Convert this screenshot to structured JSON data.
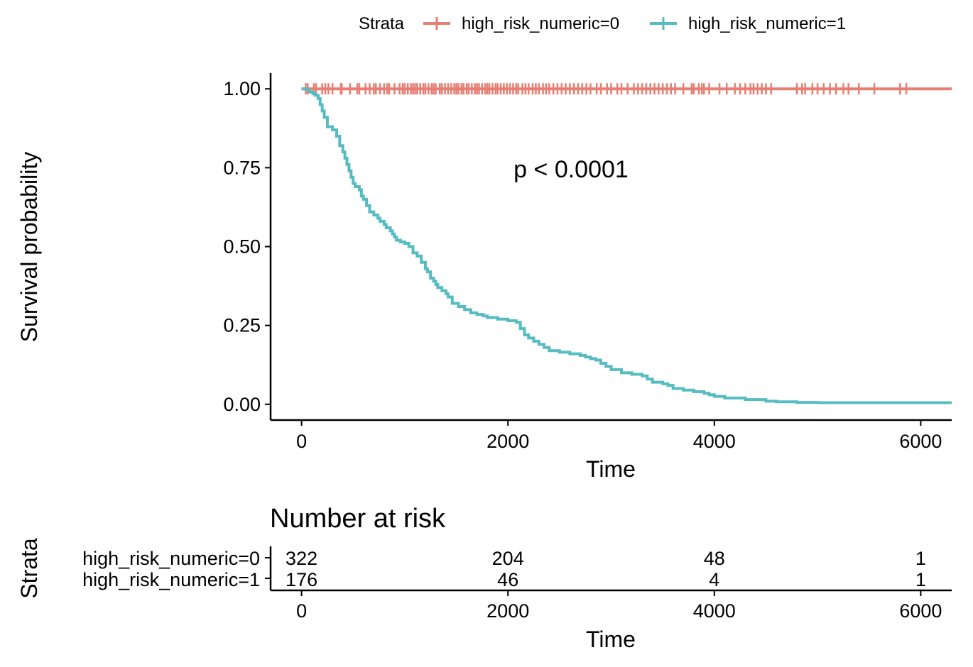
{
  "chart_data": {
    "type": "line",
    "subtype": "kaplan-meier",
    "xlabel": "Time",
    "ylabel": "Survival probability",
    "xlim": [
      -300,
      6300
    ],
    "ylim": [
      -0.05,
      1.05
    ],
    "x_ticks": [
      0,
      2000,
      4000,
      6000
    ],
    "y_ticks": [
      0.0,
      0.25,
      0.5,
      0.75,
      1.0
    ],
    "y_tick_labels": [
      "0.00",
      "0.25",
      "0.50",
      "0.75",
      "1.00"
    ],
    "grid": false,
    "legend": {
      "title": "Strata",
      "position": "top"
    },
    "annotation": "p < 0.0001",
    "colors": {
      "stratum0": "#E87D72",
      "stratum1": "#56BCC2"
    },
    "series": [
      {
        "name": "high_risk_numeric=0",
        "color": "#E87D72",
        "x": [
          0,
          6300
        ],
        "y": [
          1.0,
          1.0
        ],
        "censor_times": [
          40,
          60,
          120,
          140,
          200,
          230,
          260,
          300,
          380,
          390,
          470,
          540,
          560,
          620,
          660,
          700,
          720,
          760,
          800,
          830,
          850,
          900,
          950,
          980,
          1000,
          1030,
          1060,
          1080,
          1100,
          1120,
          1150,
          1180,
          1200,
          1230,
          1260,
          1280,
          1300,
          1340,
          1360,
          1390,
          1420,
          1450,
          1480,
          1500,
          1520,
          1550,
          1570,
          1600,
          1620,
          1650,
          1680,
          1700,
          1720,
          1750,
          1780,
          1800,
          1820,
          1850,
          1880,
          1900,
          1930,
          1960,
          1990,
          2020,
          2050,
          2080,
          2100,
          2140,
          2170,
          2200,
          2240,
          2270,
          2300,
          2340,
          2370,
          2400,
          2440,
          2480,
          2520,
          2560,
          2600,
          2640,
          2680,
          2720,
          2760,
          2800,
          2860,
          2900,
          2960,
          3000,
          3060,
          3100,
          3160,
          3220,
          3260,
          3300,
          3340,
          3380,
          3420,
          3460,
          3500,
          3540,
          3580,
          3620,
          3700,
          3780,
          3800,
          3850,
          3880,
          3900,
          3950,
          4050,
          4120,
          4200,
          4250,
          4300,
          4350,
          4380,
          4420,
          4460,
          4500,
          4550,
          4800,
          4850,
          4880,
          4950,
          5000,
          5060,
          5120,
          5180,
          5250,
          5300,
          5400,
          5550,
          5800,
          5860
        ]
      },
      {
        "name": "high_risk_numeric=1",
        "color": "#56BCC2",
        "x": [
          0,
          60,
          80,
          110,
          130,
          160,
          180,
          200,
          220,
          250,
          300,
          340,
          370,
          400,
          420,
          440,
          460,
          480,
          500,
          520,
          560,
          580,
          600,
          630,
          660,
          700,
          740,
          760,
          800,
          820,
          860,
          880,
          900,
          920,
          960,
          1000,
          1040,
          1080,
          1120,
          1160,
          1200,
          1220,
          1250,
          1280,
          1300,
          1320,
          1360,
          1400,
          1420,
          1460,
          1520,
          1580,
          1640,
          1700,
          1760,
          1800,
          1900,
          2000,
          2080,
          2120,
          2160,
          2200,
          2250,
          2300,
          2350,
          2400,
          2500,
          2600,
          2700,
          2750,
          2800,
          2850,
          2900,
          2950,
          3000,
          3100,
          3200,
          3300,
          3350,
          3400,
          3500,
          3550,
          3600,
          3700,
          3800,
          3900,
          3950,
          4000,
          4100,
          4300,
          4500,
          4600,
          4800,
          5000,
          5500,
          6300
        ],
        "y": [
          1.0,
          0.995,
          0.99,
          0.985,
          0.98,
          0.97,
          0.95,
          0.93,
          0.91,
          0.88,
          0.87,
          0.85,
          0.82,
          0.8,
          0.78,
          0.76,
          0.74,
          0.72,
          0.7,
          0.69,
          0.68,
          0.66,
          0.65,
          0.63,
          0.61,
          0.6,
          0.59,
          0.58,
          0.57,
          0.56,
          0.55,
          0.54,
          0.53,
          0.52,
          0.515,
          0.51,
          0.5,
          0.48,
          0.47,
          0.45,
          0.43,
          0.42,
          0.4,
          0.39,
          0.38,
          0.37,
          0.36,
          0.35,
          0.34,
          0.32,
          0.31,
          0.3,
          0.29,
          0.285,
          0.28,
          0.275,
          0.27,
          0.265,
          0.26,
          0.24,
          0.22,
          0.21,
          0.2,
          0.19,
          0.18,
          0.17,
          0.165,
          0.16,
          0.155,
          0.15,
          0.145,
          0.14,
          0.13,
          0.12,
          0.11,
          0.1,
          0.095,
          0.09,
          0.08,
          0.07,
          0.065,
          0.06,
          0.05,
          0.045,
          0.04,
          0.035,
          0.03,
          0.025,
          0.02,
          0.015,
          0.01,
          0.008,
          0.006,
          0.005,
          0.005,
          0.005
        ]
      }
    ],
    "risk_table": {
      "title": "Number at risk",
      "ylabel": "Strata",
      "xlabel": "Time",
      "times": [
        0,
        2000,
        4000,
        6000
      ],
      "rows": [
        {
          "name": "high_risk_numeric=0",
          "color": "#E87D72",
          "counts": [
            "322",
            "204",
            "48",
            "1"
          ]
        },
        {
          "name": "high_risk_numeric=1",
          "color": "#56BCC2",
          "counts": [
            "176",
            "46",
            "4",
            "1"
          ]
        }
      ]
    }
  }
}
